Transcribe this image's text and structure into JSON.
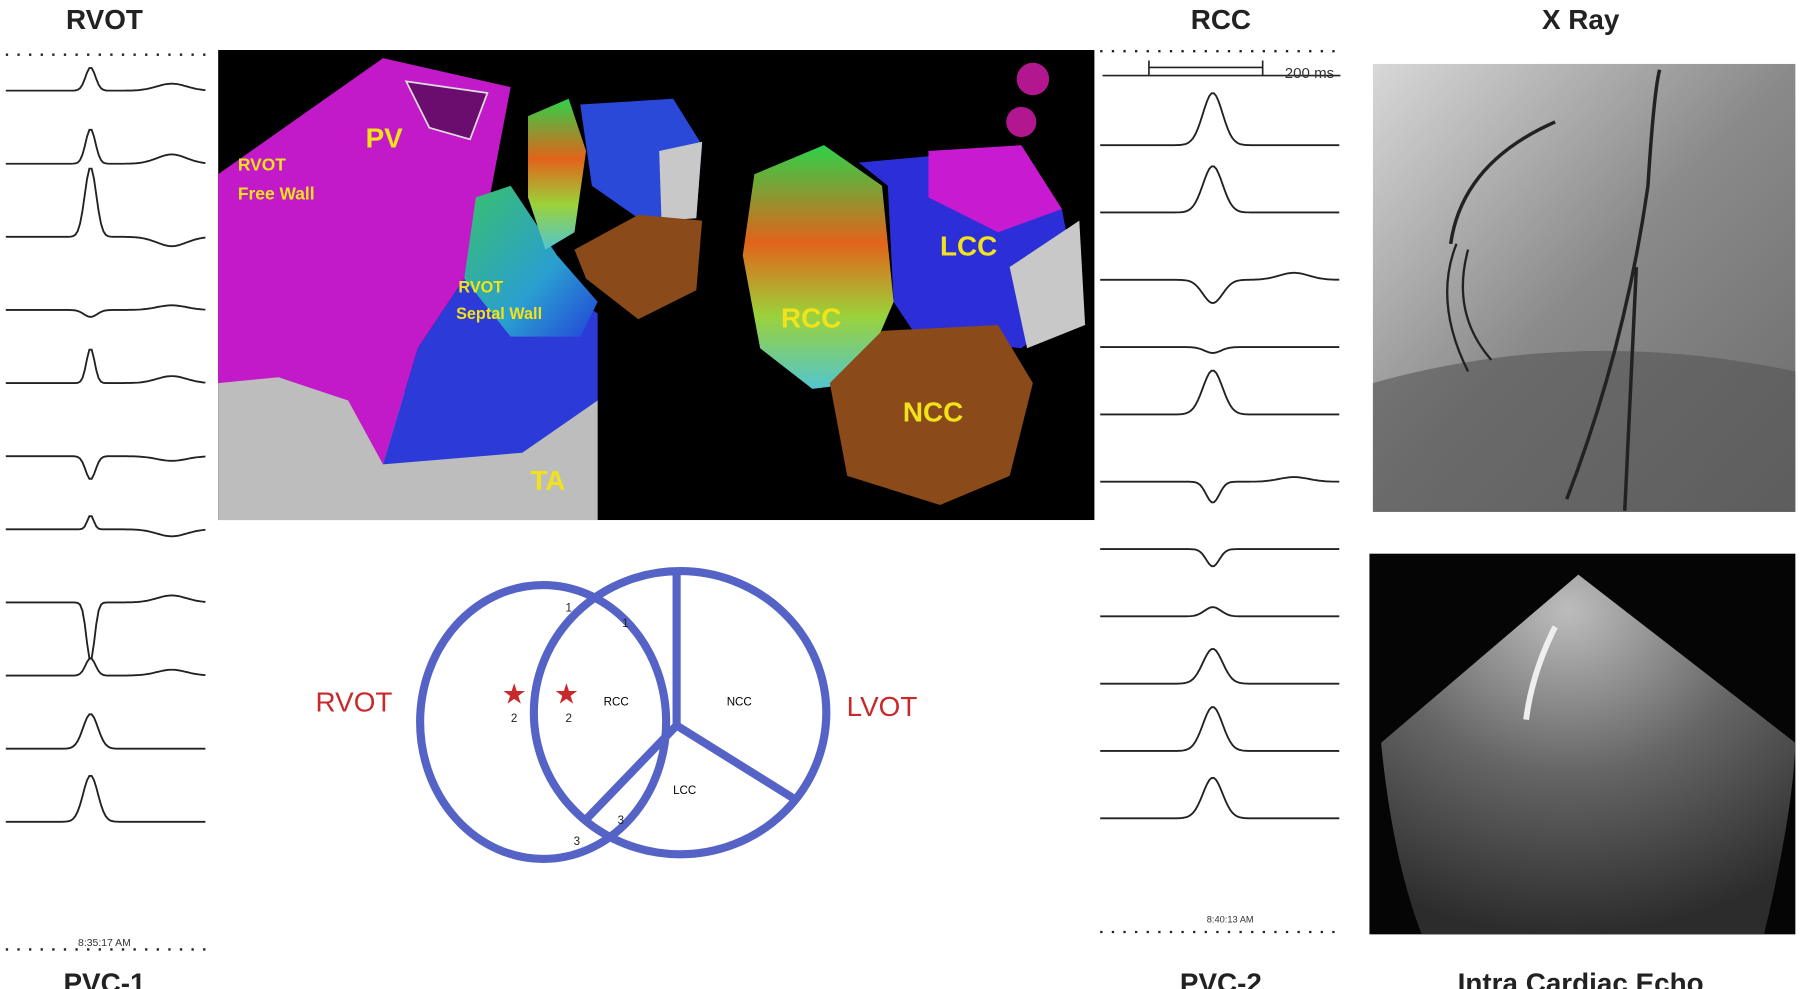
{
  "left_panel": {
    "title": "RVOT",
    "footer": "PVC-1",
    "timestamp": "8:35:17 AM"
  },
  "map": {
    "labels": {
      "pv": "PV",
      "free_wall": [
        "RVOT",
        "Free Wall"
      ],
      "septal_wall": [
        "RVOT",
        "Septal Wall"
      ],
      "ta": "TA",
      "rcc": "RCC",
      "lcc": "LCC",
      "ncc": "NCC"
    }
  },
  "diagram": {
    "outflow_labels": [
      "RVOT",
      "LVOT"
    ],
    "cusp_labels": [
      "RCC",
      "NCC",
      "LCC"
    ],
    "numbers": [
      "1",
      "1",
      "2",
      "2",
      "3",
      "3"
    ]
  },
  "right_panel": {
    "title": "RCC",
    "footer": "PVC-2",
    "scale": "200 ms",
    "timestamp": "8:40:13 AM"
  },
  "xray": {
    "title": "X Ray"
  },
  "echo": {
    "title": "Intra Cardiac Echo"
  }
}
